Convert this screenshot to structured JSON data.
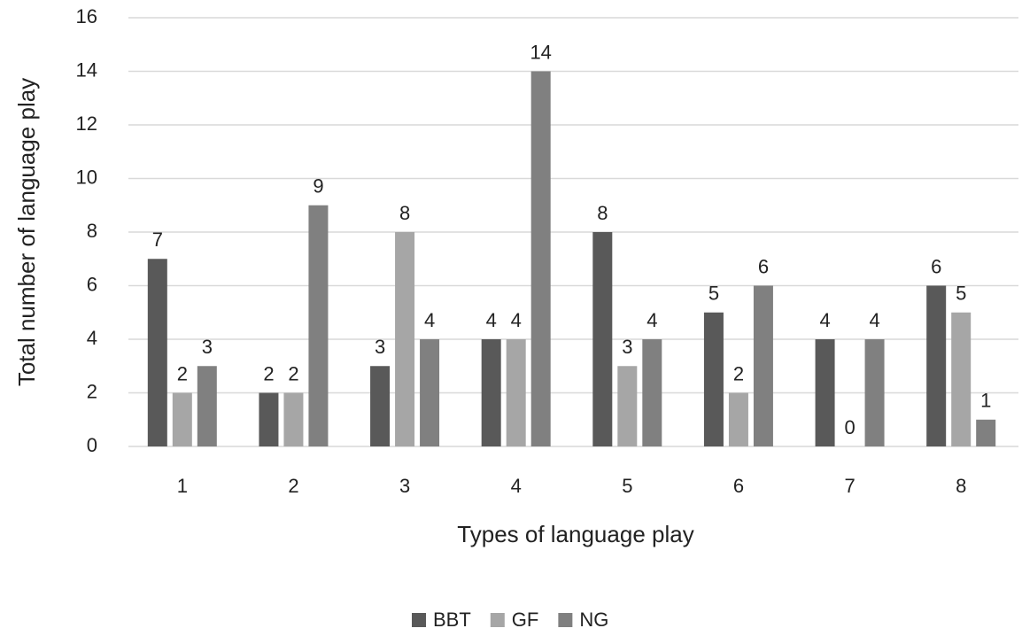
{
  "chart_data": {
    "type": "bar",
    "x_label": "Types of language play",
    "y_label": "Total number of language play",
    "categories": [
      "1",
      "2",
      "3",
      "4",
      "5",
      "6",
      "7",
      "8"
    ],
    "series": [
      {
        "name": "BBT",
        "color": "#595959",
        "values": [
          7,
          2,
          3,
          4,
          8,
          5,
          4,
          6
        ]
      },
      {
        "name": "GF",
        "color": "#a6a6a6",
        "values": [
          2,
          2,
          8,
          4,
          3,
          2,
          0,
          5
        ]
      },
      {
        "name": "NG",
        "color": "#808080",
        "values": [
          3,
          9,
          4,
          14,
          4,
          6,
          4,
          1
        ]
      }
    ],
    "ylim": [
      0,
      16
    ],
    "yticks": [
      0,
      2,
      4,
      6,
      8,
      10,
      12,
      14,
      16
    ],
    "grid": true,
    "legend": "bottom",
    "data_labels": true
  }
}
